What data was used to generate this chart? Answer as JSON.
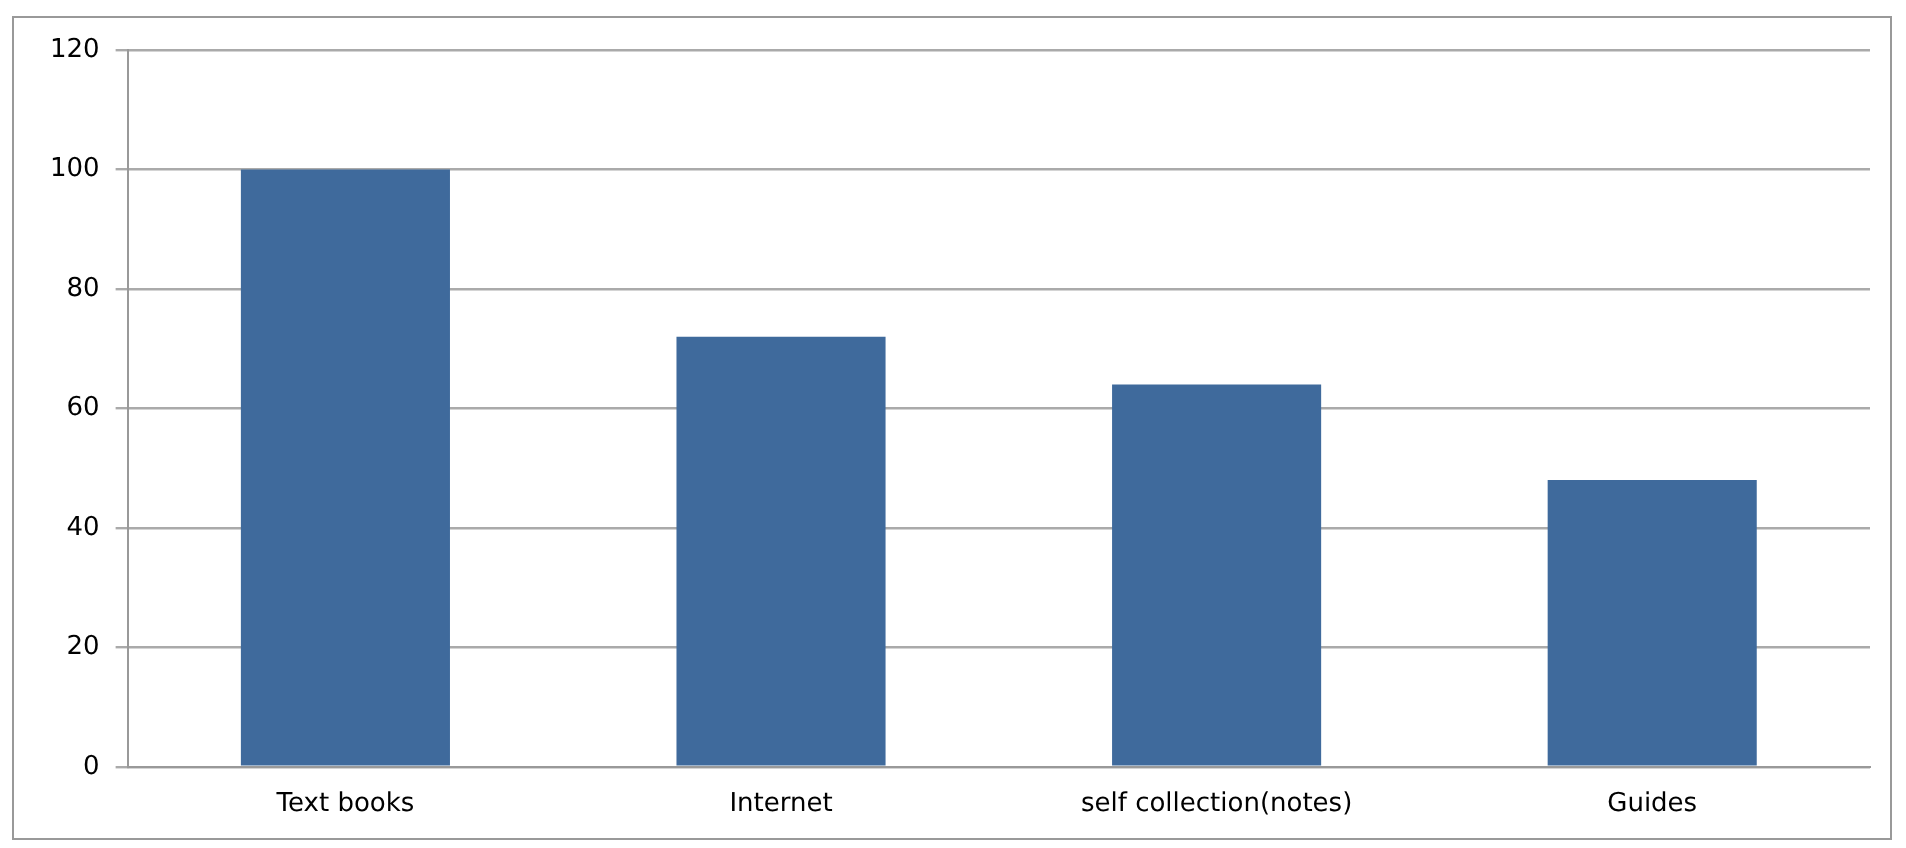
{
  "chart_data": {
    "type": "bar",
    "categories": [
      "Text books",
      "Internet",
      "self collection(notes)",
      "Guides"
    ],
    "values": [
      100,
      72,
      64,
      48
    ],
    "color": "#3f6a9c",
    "ylim": [
      0,
      120
    ],
    "yticks": [
      0,
      20,
      40,
      60,
      80,
      100,
      120
    ],
    "grid": "y"
  }
}
